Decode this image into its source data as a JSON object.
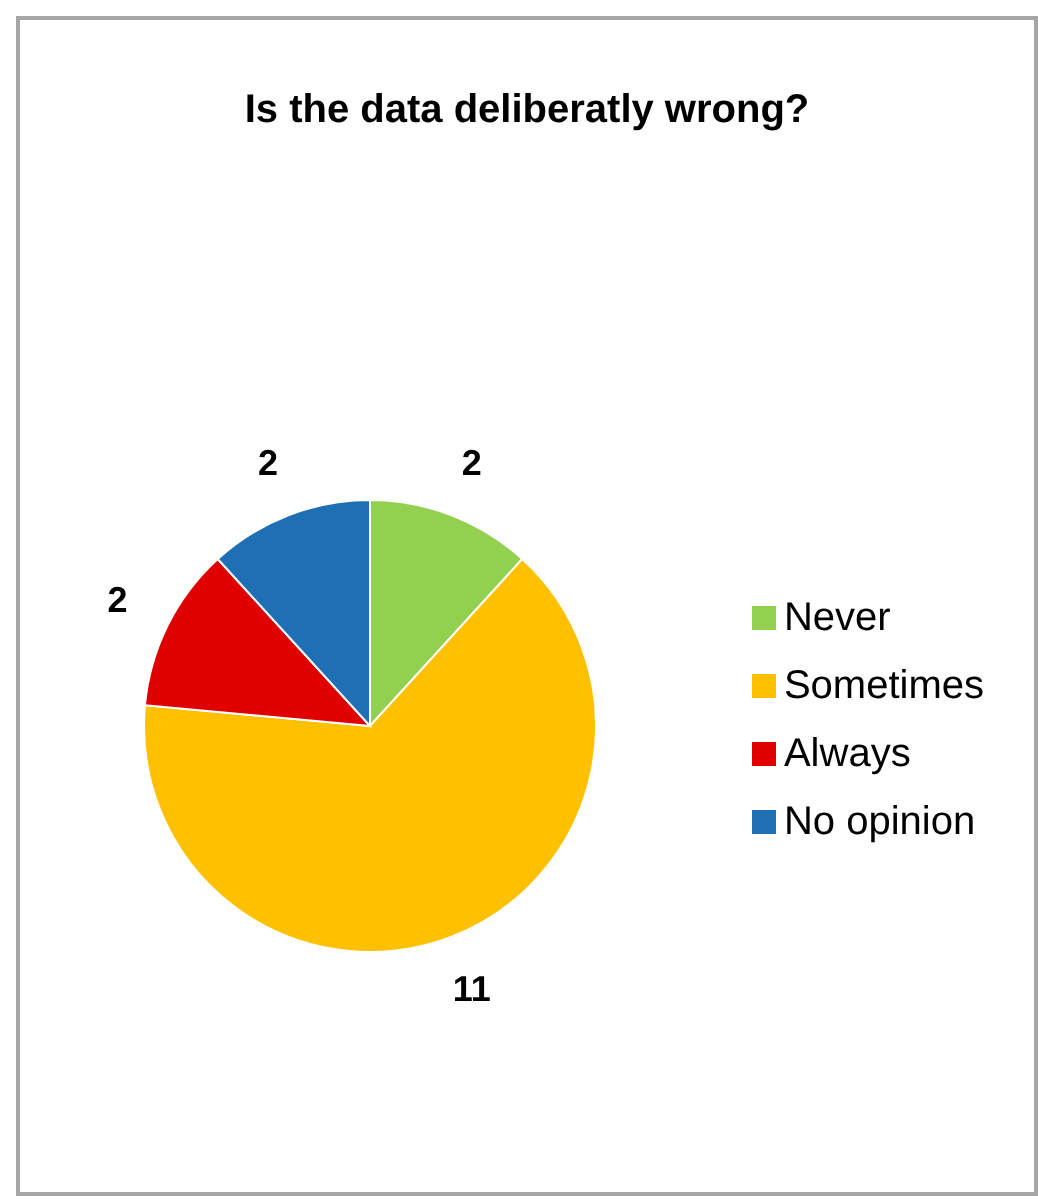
{
  "chart_data": {
    "type": "pie",
    "title": "Is the data deliberatly wrong?",
    "categories": [
      "Never",
      "Sometimes",
      "Always",
      "No opinion"
    ],
    "values": [
      2,
      11,
      2,
      2
    ],
    "colors": [
      "#92d050",
      "#ffc000",
      "#e00000",
      "#1f6fb5"
    ],
    "data_labels": true,
    "legend": "right"
  }
}
